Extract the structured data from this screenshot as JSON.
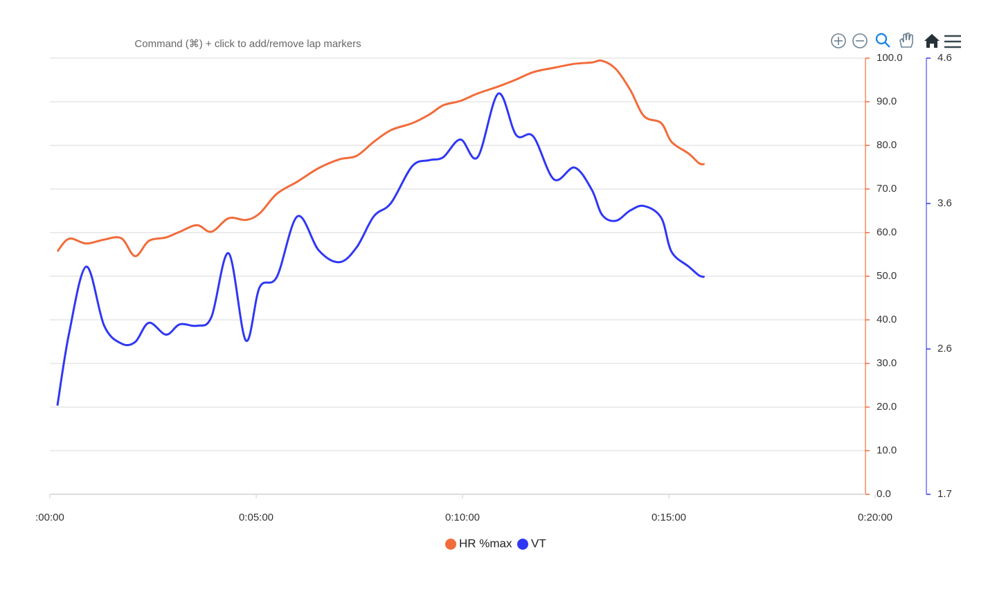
{
  "chart_data": {
    "type": "line",
    "annotation": "Command (⌘) + click to add/remove lap markers",
    "x": [
      11,
      28,
      53,
      79,
      104,
      124,
      144,
      169,
      189,
      214,
      235,
      260,
      285,
      305,
      330,
      360,
      391,
      421,
      446,
      471,
      496,
      527,
      552,
      572,
      597,
      622,
      652,
      678,
      703,
      733,
      763,
      788,
      803,
      823,
      844,
      864,
      889,
      904,
      929,
      944,
      952
    ],
    "xlim": [
      0,
      1200
    ],
    "xticks": [
      {
        "value": 0,
        "label": ":00:00"
      },
      {
        "value": 300,
        "label": "0:05:00"
      },
      {
        "value": 600,
        "label": "0:10:00"
      },
      {
        "value": 900,
        "label": "0:15:00"
      },
      {
        "value": 1200,
        "label": "0:20:00"
      }
    ],
    "ylim": [
      0,
      100
    ],
    "yticks": [
      {
        "value": 0,
        "label": "0.0"
      },
      {
        "value": 10,
        "label": "10.0"
      },
      {
        "value": 20,
        "label": "20.0"
      },
      {
        "value": 30,
        "label": "30.0"
      },
      {
        "value": 40,
        "label": "40.0"
      },
      {
        "value": 50,
        "label": "50.0"
      },
      {
        "value": 60,
        "label": "60.0"
      },
      {
        "value": 70,
        "label": "70.0"
      },
      {
        "value": 80,
        "label": "80.0"
      },
      {
        "value": 90,
        "label": "90.0"
      },
      {
        "value": 100,
        "label": "100.0"
      }
    ],
    "y2lim": [
      1.65,
      4.6
    ],
    "y2ticks": [
      {
        "value": 1.65,
        "label": "1.7"
      },
      {
        "value": 2.633,
        "label": "2.6"
      },
      {
        "value": 3.617,
        "label": "3.6"
      },
      4.6
    ],
    "grid": true,
    "legend": "bottom",
    "series": [
      {
        "name": "HR %max",
        "color": "#f26b3a",
        "values": [
          55.7,
          58.6,
          57.5,
          58.4,
          58.7,
          54.6,
          58.1,
          58.9,
          60.2,
          61.7,
          60.2,
          63.3,
          62.9,
          64.4,
          68.9,
          71.7,
          74.8,
          76.8,
          77.6,
          80.8,
          83.5,
          85.1,
          87.1,
          89.2,
          90.2,
          91.9,
          93.5,
          95.1,
          96.8,
          97.8,
          98.7,
          99.0,
          99.4,
          97.5,
          92.7,
          86.7,
          85.1,
          80.8,
          78.1,
          75.9,
          75.7
        ]
      },
      {
        "name": "VT",
        "color": "#2f37f5",
        "axis": "y2",
        "values": [
          2.25,
          2.74,
          3.19,
          2.79,
          2.67,
          2.68,
          2.81,
          2.73,
          2.8,
          2.79,
          2.85,
          3.28,
          2.69,
          3.05,
          3.12,
          3.53,
          3.3,
          3.22,
          3.32,
          3.53,
          3.62,
          3.87,
          3.91,
          3.93,
          4.05,
          3.93,
          4.36,
          4.08,
          4.07,
          3.78,
          3.86,
          3.71,
          3.54,
          3.5,
          3.57,
          3.6,
          3.52,
          3.29,
          3.19,
          3.13,
          3.12
        ]
      }
    ]
  }
}
